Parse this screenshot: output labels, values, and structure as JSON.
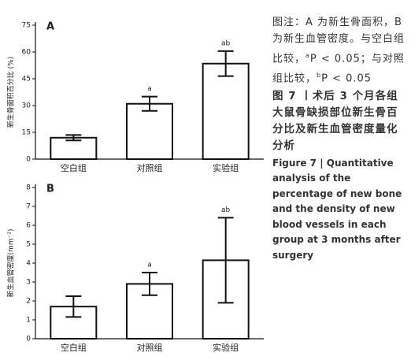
{
  "chart_data": [
    {
      "type": "bar",
      "panel_label": "A",
      "y_label": "新生骨面积百分比 (%)",
      "categories": [
        "空白组",
        "对照组",
        "实验组"
      ],
      "values": [
        12,
        31,
        53.5
      ],
      "errors": [
        1.5,
        4,
        7
      ],
      "annotations": [
        null,
        "a",
        "ab"
      ],
      "color": "#ffffff",
      "ylim": [
        0,
        75
      ],
      "yticks": [
        0,
        15,
        30,
        45,
        60,
        75
      ],
      "grid": false
    },
    {
      "type": "bar",
      "panel_label": "B",
      "y_label": "新生血管密度(mm⁻²)",
      "categories": [
        "空白组",
        "对照组",
        "实验组"
      ],
      "values": [
        1.7,
        2.9,
        4.15
      ],
      "errors": [
        0.55,
        0.6,
        2.25
      ],
      "annotations": [
        null,
        "a",
        "ab"
      ],
      "color": "#ffffff",
      "ylim": [
        0,
        8
      ],
      "yticks": [
        0,
        1,
        2,
        3,
        4,
        5,
        6,
        7,
        8
      ],
      "grid": false
    }
  ],
  "caption": {
    "note": [
      "图注：A 为新生骨面积，B 为新生血管密度。与空白组比较，",
      "a",
      "P < 0.05；与对照组比较，",
      "b",
      "P < 0.05"
    ],
    "title": "图 7 丨术后 3 个月各组大鼠骨缺损部位新生骨百分比及新生血管密度量化分析",
    "english": "Figure 7 | Quantitative analysis of the percentage of new bone and the density of new blood vessels in each group at 3 months after surgery"
  }
}
